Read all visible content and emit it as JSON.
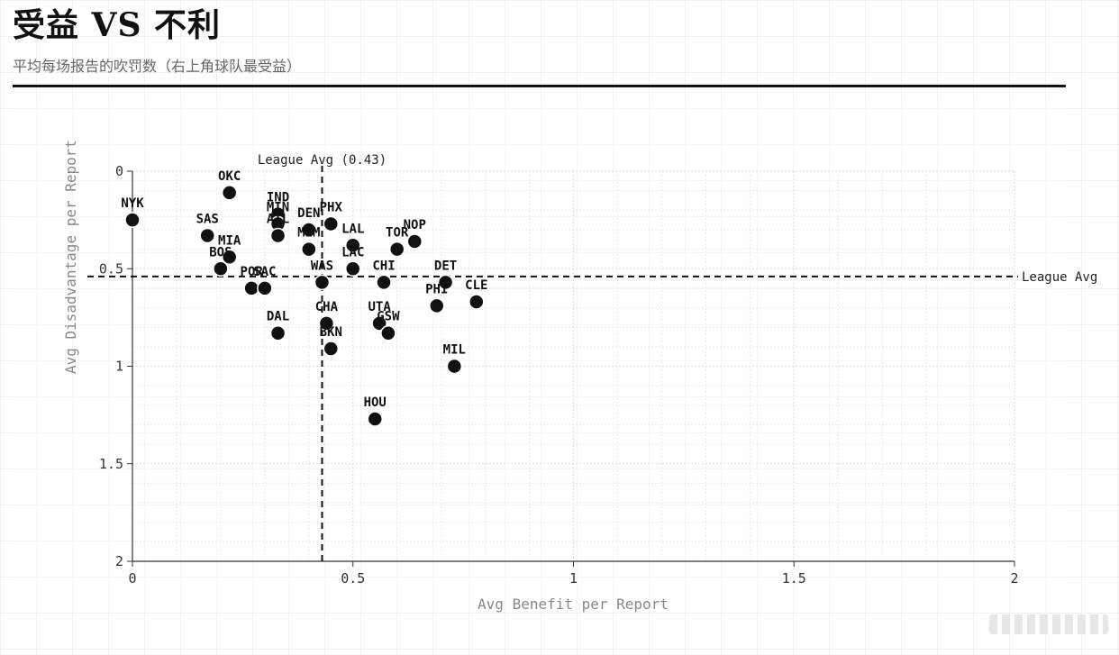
{
  "header": {
    "title": "受益 VS 不利",
    "subtitle": "平均每场报告的吹罚数（右上角球队最受益）"
  },
  "chart_data": {
    "type": "scatter",
    "xlabel": "Avg Benefit per Report",
    "ylabel": "Avg Disadvantage per Report",
    "xlim": [
      0,
      2
    ],
    "ylim": [
      0,
      2
    ],
    "y_axis_inverted": true,
    "x_ticks": [
      "0",
      "0.5",
      "1",
      "1.5",
      "2"
    ],
    "y_ticks": [
      "0",
      "0.5",
      "1",
      "1.5",
      "2"
    ],
    "grid": true,
    "point_color": "#111111",
    "reference_lines": [
      {
        "axis": "x",
        "value": 0.43,
        "label": "League Avg (0.43)"
      },
      {
        "axis": "y",
        "value": 0.54,
        "label": "League Avg"
      }
    ],
    "points": [
      {
        "team": "NYK",
        "x": 0.0,
        "y": 0.25
      },
      {
        "team": "OKC",
        "x": 0.22,
        "y": 0.11
      },
      {
        "team": "SAS",
        "x": 0.17,
        "y": 0.33
      },
      {
        "team": "MIA",
        "x": 0.22,
        "y": 0.44
      },
      {
        "team": "BOS",
        "x": 0.2,
        "y": 0.5
      },
      {
        "team": "POR",
        "x": 0.27,
        "y": 0.6
      },
      {
        "team": "SAC",
        "x": 0.3,
        "y": 0.6
      },
      {
        "team": "IND",
        "x": 0.33,
        "y": 0.22
      },
      {
        "team": "MIN",
        "x": 0.33,
        "y": 0.27
      },
      {
        "team": "ATL",
        "x": 0.33,
        "y": 0.33
      },
      {
        "team": "DEN",
        "x": 0.4,
        "y": 0.3
      },
      {
        "team": "MEM",
        "x": 0.4,
        "y": 0.4
      },
      {
        "team": "PHX",
        "x": 0.45,
        "y": 0.27
      },
      {
        "team": "LAL",
        "x": 0.5,
        "y": 0.38
      },
      {
        "team": "LAC",
        "x": 0.5,
        "y": 0.5
      },
      {
        "team": "WAS",
        "x": 0.43,
        "y": 0.57
      },
      {
        "team": "TOR",
        "x": 0.6,
        "y": 0.4
      },
      {
        "team": "NOP",
        "x": 0.64,
        "y": 0.36
      },
      {
        "team": "CHI",
        "x": 0.57,
        "y": 0.57
      },
      {
        "team": "DET",
        "x": 0.71,
        "y": 0.57
      },
      {
        "team": "PHI",
        "x": 0.69,
        "y": 0.69
      },
      {
        "team": "CLE",
        "x": 0.78,
        "y": 0.67
      },
      {
        "team": "DAL",
        "x": 0.33,
        "y": 0.83
      },
      {
        "team": "CHA",
        "x": 0.44,
        "y": 0.78
      },
      {
        "team": "BKN",
        "x": 0.45,
        "y": 0.91
      },
      {
        "team": "UTA",
        "x": 0.56,
        "y": 0.78
      },
      {
        "team": "GSW",
        "x": 0.58,
        "y": 0.83
      },
      {
        "team": "MIL",
        "x": 0.73,
        "y": 1.0
      },
      {
        "team": "HOU",
        "x": 0.55,
        "y": 1.27
      }
    ]
  }
}
